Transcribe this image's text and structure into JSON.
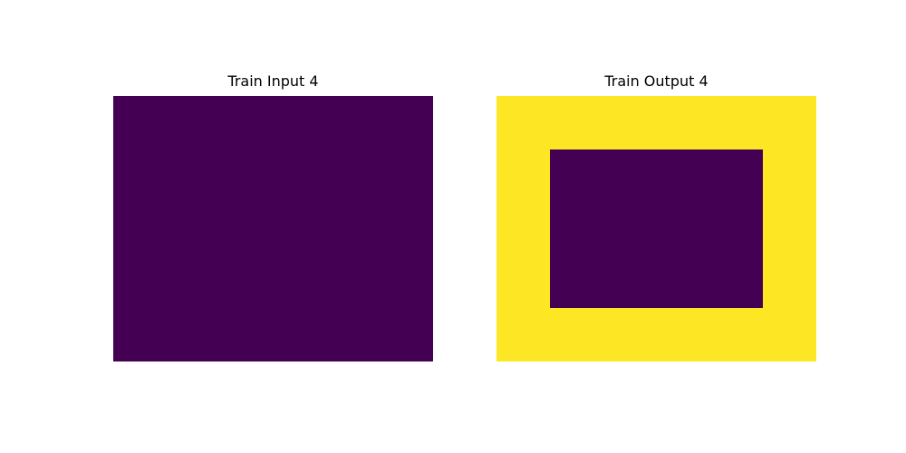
{
  "palette": {
    "0": "#440154",
    "4": "#fde725"
  },
  "panels": [
    {
      "title": "Train Input 4",
      "grid": [
        [
          0,
          0,
          0,
          0,
          0,
          0
        ],
        [
          0,
          0,
          0,
          0,
          0,
          0
        ],
        [
          0,
          0,
          0,
          0,
          0,
          0
        ],
        [
          0,
          0,
          0,
          0,
          0,
          0
        ],
        [
          0,
          0,
          0,
          0,
          0,
          0
        ]
      ]
    },
    {
      "title": "Train Output 4",
      "grid": [
        [
          4,
          4,
          4,
          4,
          4,
          4
        ],
        [
          4,
          0,
          0,
          0,
          0,
          4
        ],
        [
          4,
          0,
          0,
          0,
          0,
          4
        ],
        [
          4,
          0,
          0,
          0,
          0,
          4
        ],
        [
          4,
          4,
          4,
          4,
          4,
          4
        ]
      ]
    }
  ]
}
